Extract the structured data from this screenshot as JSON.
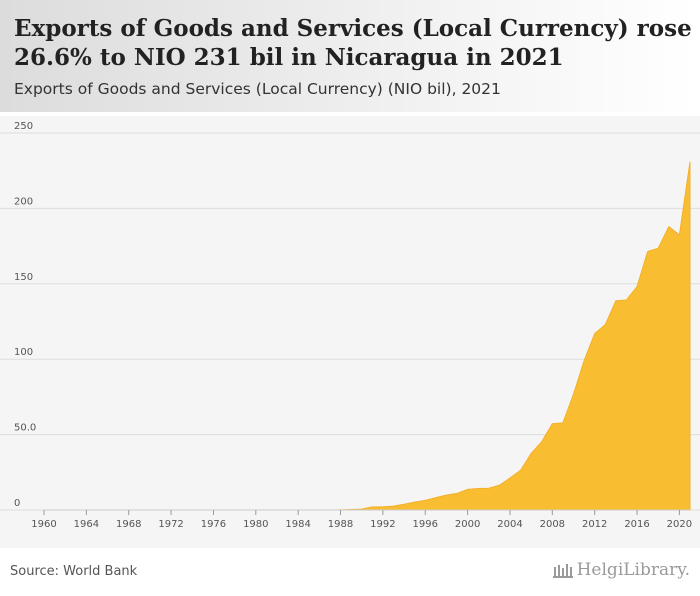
{
  "header": {
    "title": "Exports of Goods and Services (Local Currency) rose 26.6% to NIO 231 bil in Nicaragua in 2021",
    "subtitle": "Exports of Goods and Services (Local Currency) (NIO bil), 2021"
  },
  "footer": {
    "source": "Source: World Bank",
    "logo_text": "HelgiLibrary."
  },
  "colors": {
    "area_fill": "#F9BD32",
    "area_stroke": "#F3B02A",
    "grid": "#dddddd",
    "tick_text": "#555555"
  },
  "chart_data": {
    "type": "area",
    "title": "Exports of Goods and Services (Local Currency) rose 26.6% to NIO 231 bil in Nicaragua in 2021",
    "subtitle": "Exports of Goods and Services (Local Currency) (NIO bil), 2021",
    "xlabel": "",
    "ylabel": "",
    "xlim": [
      1960,
      2021
    ],
    "ylim": [
      0,
      250
    ],
    "yticks": [
      0,
      50,
      100,
      150,
      200,
      250
    ],
    "ytick_labels": [
      "0",
      "50.0",
      "100",
      "150",
      "200",
      "250"
    ],
    "xticks": [
      1960,
      1964,
      1968,
      1972,
      1976,
      1980,
      1984,
      1988,
      1992,
      1996,
      2000,
      2004,
      2008,
      2012,
      2016,
      2020
    ],
    "grid": true,
    "legend": "none",
    "series": [
      {
        "x": [
          1960,
          1961,
          1962,
          1963,
          1964,
          1965,
          1966,
          1967,
          1968,
          1969,
          1970,
          1971,
          1972,
          1973,
          1974,
          1975,
          1976,
          1977,
          1978,
          1979,
          1980,
          1981,
          1982,
          1983,
          1984,
          1985,
          1986,
          1987,
          1988,
          1989,
          1990,
          1991,
          1992,
          1993,
          1994,
          1995,
          1996,
          1997,
          1998,
          1999,
          2000,
          2001,
          2002,
          2003,
          2004,
          2005,
          2006,
          2007,
          2008,
          2009,
          2010,
          2011,
          2012,
          2013,
          2014,
          2015,
          2016,
          2017,
          2018,
          2019,
          2020,
          2021
        ],
        "values": [
          0,
          0,
          0,
          0,
          0,
          0,
          0,
          0,
          0,
          0,
          0,
          0,
          0,
          0,
          0,
          0,
          0,
          0,
          0,
          0,
          0,
          0,
          0,
          0,
          0,
          0,
          0,
          0,
          0.1,
          0.3,
          0.6,
          2.1,
          2.1,
          2.6,
          3.8,
          5.2,
          6.4,
          8.2,
          9.9,
          11.0,
          13.7,
          14.3,
          14.4,
          16.4,
          21.2,
          26.3,
          37.5,
          45.3,
          57.2,
          57.8,
          76.8,
          99.0,
          117.0,
          122.9,
          138.8,
          139.3,
          148.1,
          171.4,
          173.6,
          187.9,
          182.4,
          231.0
        ]
      }
    ]
  }
}
